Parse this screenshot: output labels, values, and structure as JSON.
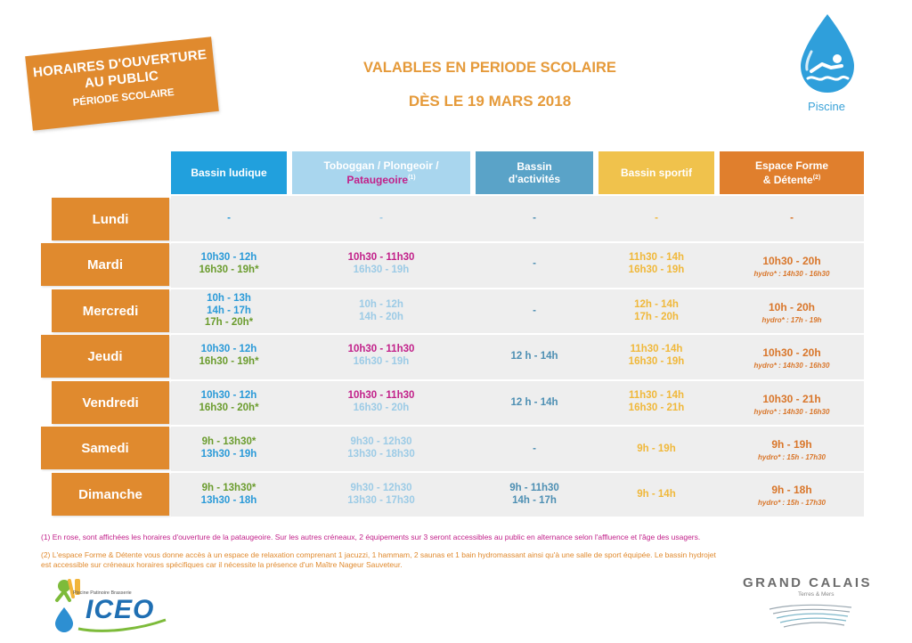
{
  "badge": {
    "line1": "HORAIRES D'OUVERTURE",
    "line2": "AU PUBLIC",
    "line3": "PÉRIODE SCOLAIRE"
  },
  "headline": {
    "line1": "VALABLES EN PERIODE SCOLAIRE",
    "line2": "DÈS LE 19 MARS 2018"
  },
  "logo": {
    "label": "Piscine",
    "icon": "swimmer-drop-icon"
  },
  "columns": {
    "c1": "Bassin ludique",
    "c2_a": "Toboggan / Plongeoir /",
    "c2_b": "Pataugeoire",
    "c2_sup": "(1)",
    "c3_a": "Bassin",
    "c3_b": "d'activités",
    "c4": "Bassin sportif",
    "c5_a": "Espace Forme",
    "c5_b": "& Détente",
    "c5_sup": "(2)"
  },
  "days": [
    "Lundi",
    "Mardi",
    "Mercredi",
    "Jeudi",
    "Vendredi",
    "Samedi",
    "Dimanche"
  ],
  "rows": [
    {
      "c1": [
        "-"
      ],
      "c2": [
        "-"
      ],
      "c3": [
        "-"
      ],
      "c4": [
        "-"
      ],
      "c5": [
        "-"
      ],
      "hydro": ""
    },
    {
      "c1": [
        "10h30 - 12h",
        "16h30 - 19h*"
      ],
      "c2": [
        "10h30 - 11h30",
        "16h30 - 19h"
      ],
      "c3": [
        "-"
      ],
      "c4": [
        "11h30 - 14h",
        "16h30 - 19h"
      ],
      "c5": [
        "10h30 - 20h"
      ],
      "hydro": "hydro* : 14h30 - 16h30"
    },
    {
      "c1": [
        "10h - 13h",
        "14h - 17h",
        "17h - 20h*"
      ],
      "c2": [
        "10h - 12h",
        "14h - 20h"
      ],
      "c3": [
        "-"
      ],
      "c4": [
        "12h - 14h",
        "17h - 20h"
      ],
      "c5": [
        "10h - 20h"
      ],
      "hydro": "hydro* : 17h - 19h"
    },
    {
      "c1": [
        "10h30 - 12h",
        "16h30 - 19h*"
      ],
      "c2": [
        "10h30 - 11h30",
        "16h30 - 19h"
      ],
      "c3": [
        "12 h - 14h"
      ],
      "c4": [
        "11h30 -14h",
        "16h30 - 19h"
      ],
      "c5": [
        "10h30 - 20h"
      ],
      "hydro": "hydro* : 14h30 - 16h30"
    },
    {
      "c1": [
        "10h30 - 12h",
        "16h30 - 20h*"
      ],
      "c2": [
        "10h30 - 11h30",
        "16h30 - 20h"
      ],
      "c3": [
        "12 h - 14h"
      ],
      "c4": [
        "11h30 - 14h",
        "16h30 - 21h"
      ],
      "c5": [
        "10h30 - 21h"
      ],
      "hydro": "hydro* : 14h30 - 16h30"
    },
    {
      "c1": [
        "9h - 13h30*",
        "13h30 - 19h"
      ],
      "c2": [
        "9h30 - 12h30",
        "13h30 - 18h30"
      ],
      "c3": [
        "-"
      ],
      "c4": [
        "9h - 19h"
      ],
      "c5": [
        "9h - 19h"
      ],
      "hydro": "hydro* : 15h - 17h30"
    },
    {
      "c1": [
        "9h - 13h30*",
        "13h30 - 18h"
      ],
      "c2": [
        "9h30 - 12h30",
        "13h30 - 17h30"
      ],
      "c3": [
        "9h - 11h30",
        "14h - 17h"
      ],
      "c4": [
        "9h - 14h"
      ],
      "c5": [
        "9h - 18h"
      ],
      "hydro": "hydro* : 15h - 17h30"
    }
  ],
  "footnotes": {
    "fn1": "(1) En rose, sont affichées les horaires d'ouverture de la pataugeoire. Sur les autres créneaux, 2 équipements sur 3 seront accessibles au public en alternance selon l'affluence et l'âge des usagers.",
    "fn2a": "(2) L'espace Forme & Détente vous donne accès à un espace de relaxation comprenant 1 jacuzzi, 1 hammam, 2 saunas et 1 bain hydromassant ainsi qu'à une salle de sport équipée. Le bassin hydrojet",
    "fn2b": "est accessible sur créneaux horaires spécifiques car il nécessite la présence d'un Maître Nageur Sauveteur."
  },
  "iceo": {
    "tagline": "Piscine Patinoire Brasserie",
    "word": "ICEO"
  },
  "grand_calais": {
    "title": "GRAND CALAIS",
    "subtitle": "Terres & Mers"
  },
  "colors": {
    "orange": "#e08a2e",
    "blue": "#21a0dd",
    "light_blue": "#a9d6ee",
    "steel_blue": "#5aa3c8",
    "yellow": "#f0c24c",
    "pink": "#c2218a",
    "green": "#6b9c2e"
  }
}
